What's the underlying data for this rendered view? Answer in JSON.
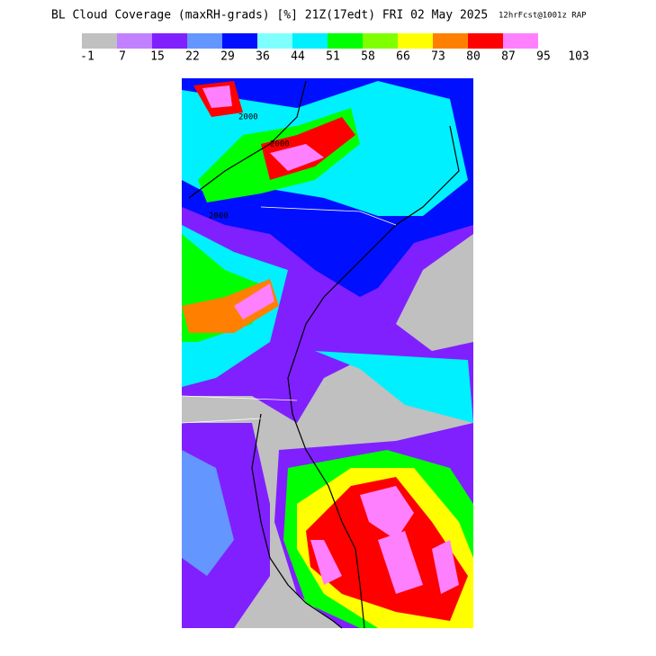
{
  "header": {
    "title": "BL Cloud Coverage (maxRH-grads) [%] 21Z(17edt) FRI 02 May 2025",
    "run": "12hrFcst@1001z RAP"
  },
  "colorbar": {
    "colors": [
      "#c0c0c0",
      "#c080ff",
      "#8020ff",
      "#6496ff",
      "#0010ff",
      "#80ffff",
      "#00f0ff",
      "#00ff00",
      "#80ff00",
      "#ffff00",
      "#ff8000",
      "#ff0000",
      "#ff80ff"
    ],
    "labels": [
      -1,
      7,
      15,
      22,
      29,
      36,
      44,
      51,
      58,
      66,
      73,
      80,
      87,
      95,
      103
    ]
  },
  "map": {
    "contour_labels": [
      "2000",
      "2000",
      "2000"
    ]
  }
}
